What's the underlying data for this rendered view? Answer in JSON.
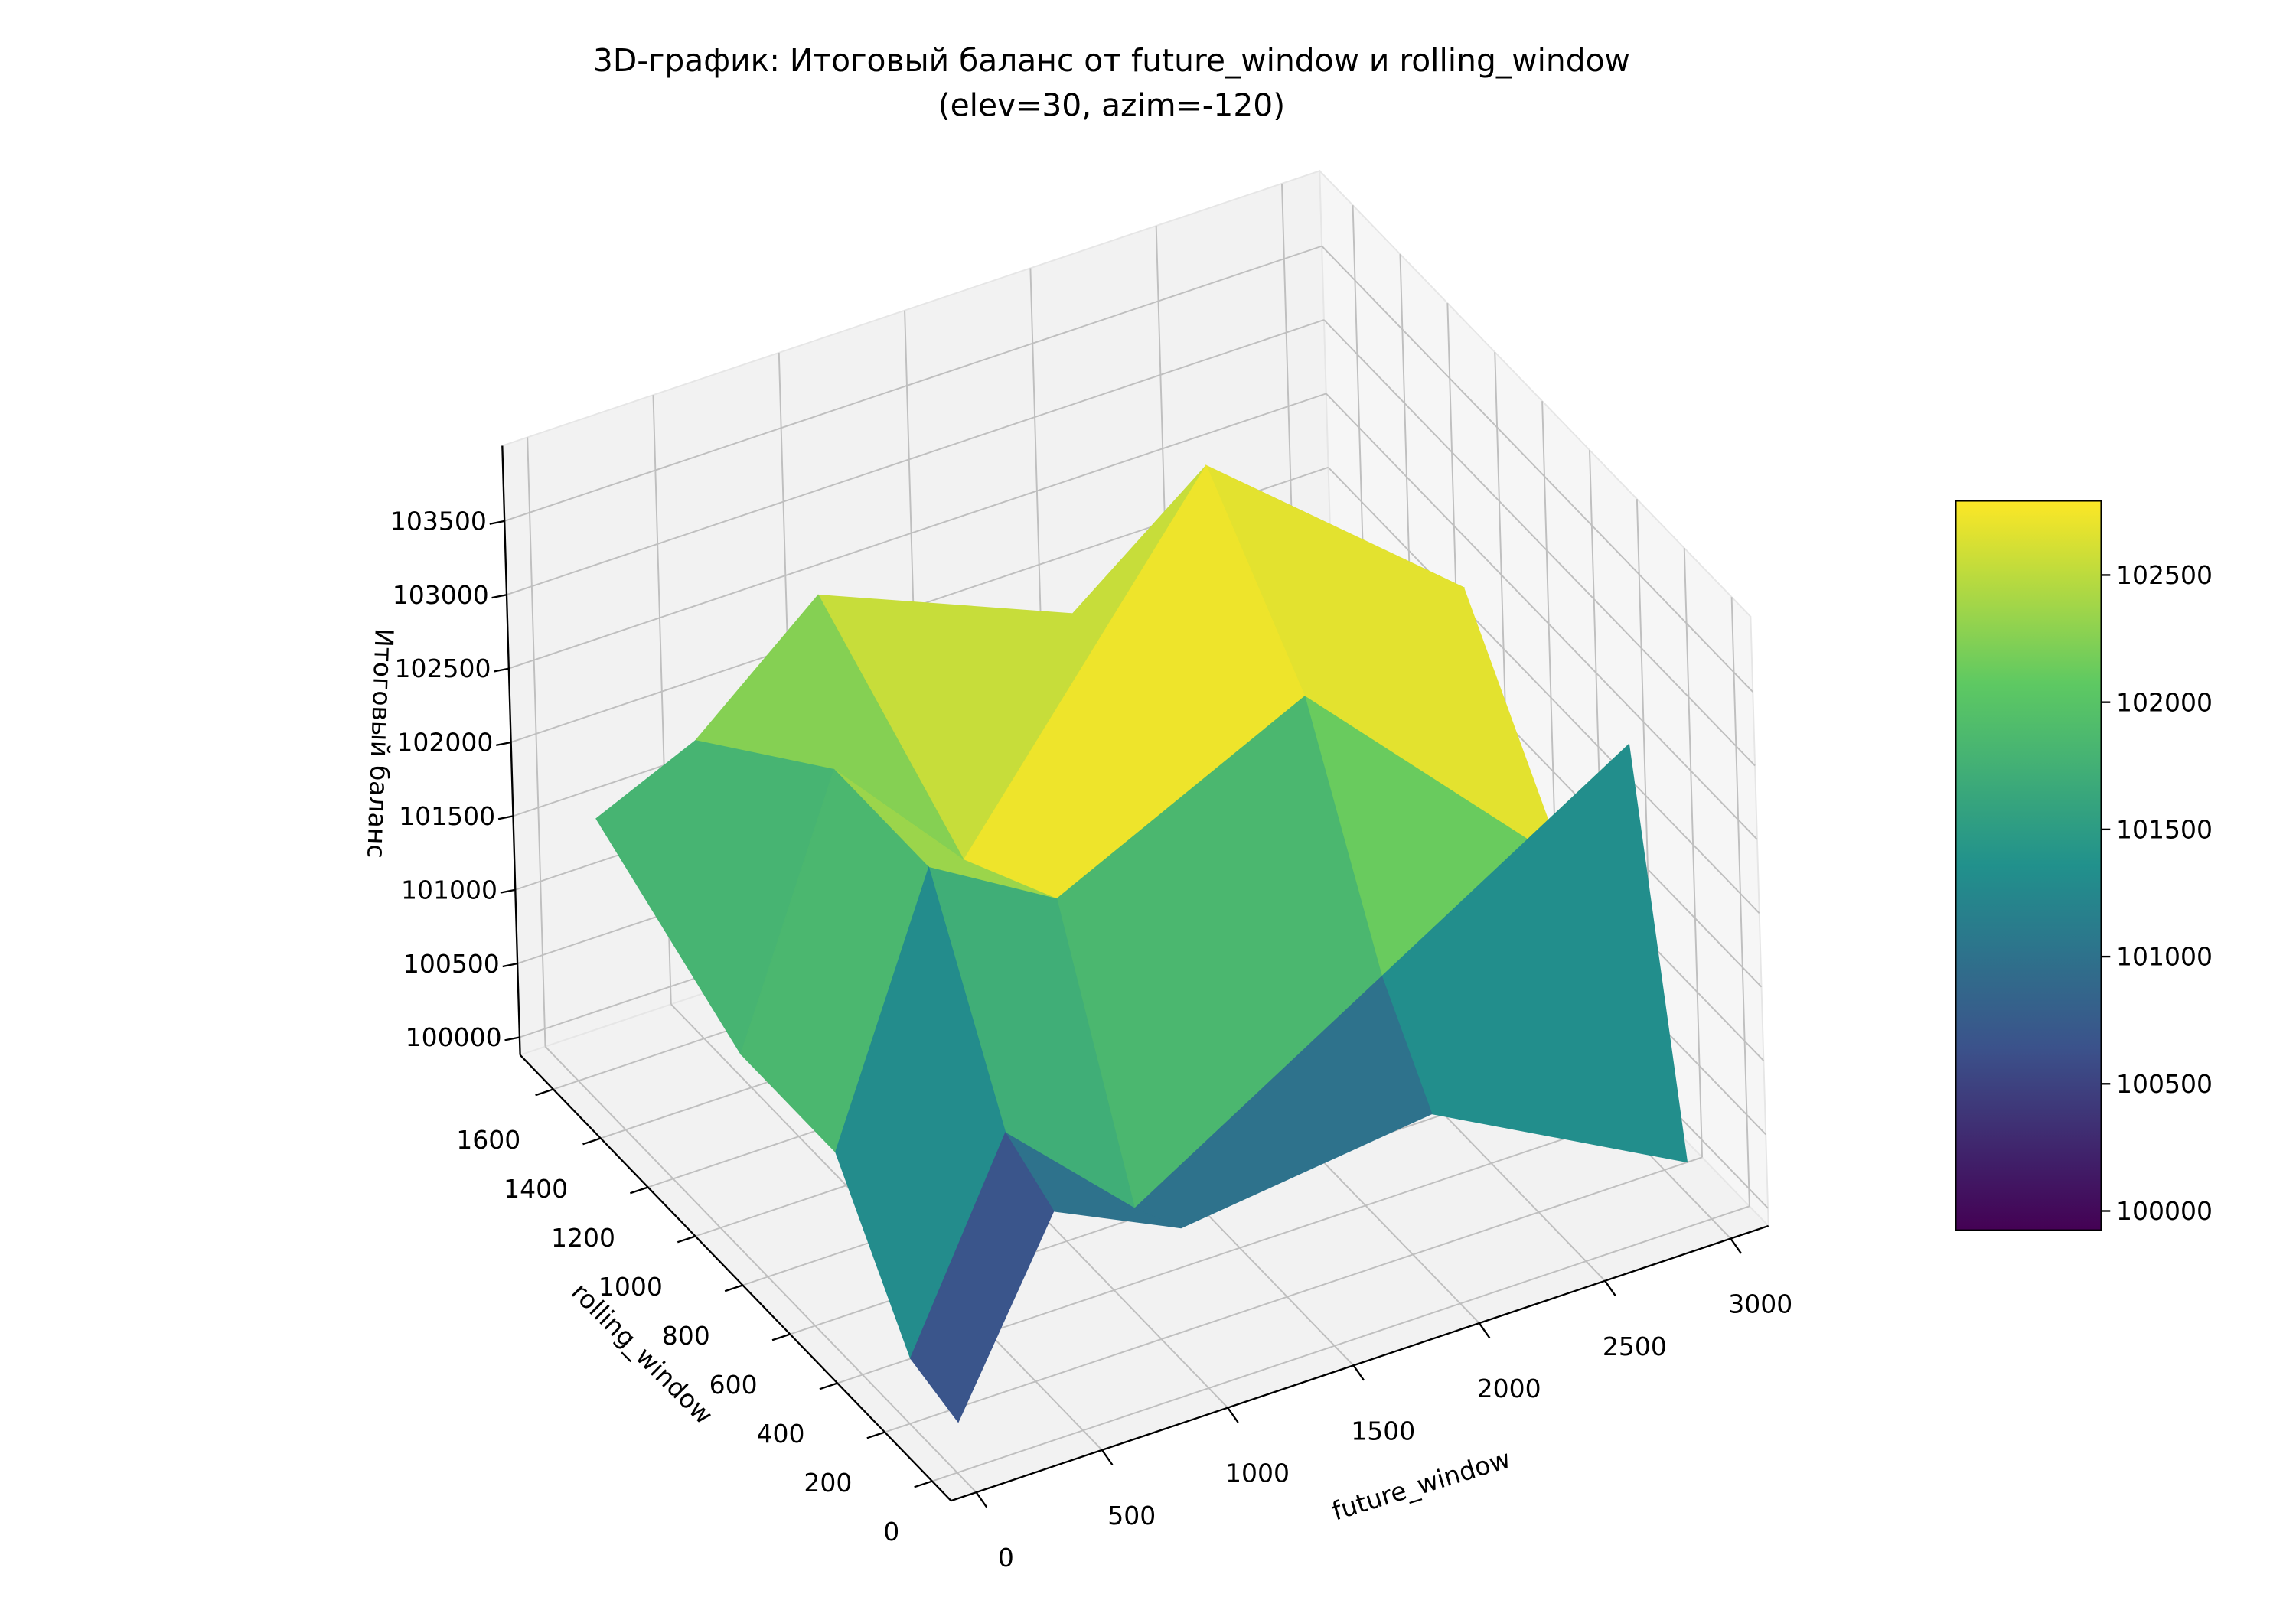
{
  "chart_data": {
    "type": "surface3d",
    "title": [
      "3D-график: Итоговый баланс от future_window и rolling_window",
      "(elev=30, azim=-120)"
    ],
    "x_label": "future_window",
    "y_label": "rolling_window",
    "z_label": "Итоговый баланс",
    "x": [
      100,
      500,
      1000,
      2000,
      3000
    ],
    "y": [
      100,
      300,
      600,
      1000,
      1600
    ],
    "z": [
      [
        100000,
        101200,
        100800,
        101000,
        100100
      ],
      [
        100100,
        101400,
        100600,
        101600,
        102600
      ],
      [
        101000,
        102700,
        102200,
        103000,
        101300
      ],
      [
        101000,
        102700,
        101800,
        103900,
        102500
      ],
      [
        101600,
        101900,
        102600,
        101900,
        101400
      ]
    ],
    "xlim": [
      -100,
      3150
    ],
    "ylim": [
      -80,
      1740
    ],
    "zlim": [
      99880,
      104010
    ],
    "xticks": [
      0,
      500,
      1000,
      1500,
      2000,
      2500,
      3000
    ],
    "yticks": [
      0,
      200,
      400,
      600,
      800,
      1000,
      1200,
      1400,
      1600
    ],
    "zticks": [
      100000,
      100500,
      101000,
      101500,
      102000,
      102500,
      103000,
      103500
    ],
    "colormap": "viridis",
    "clim": [
      99924,
      102792
    ],
    "colorbar_ticks": [
      100000,
      100500,
      101000,
      101500,
      102000,
      102500
    ],
    "grid": true
  }
}
